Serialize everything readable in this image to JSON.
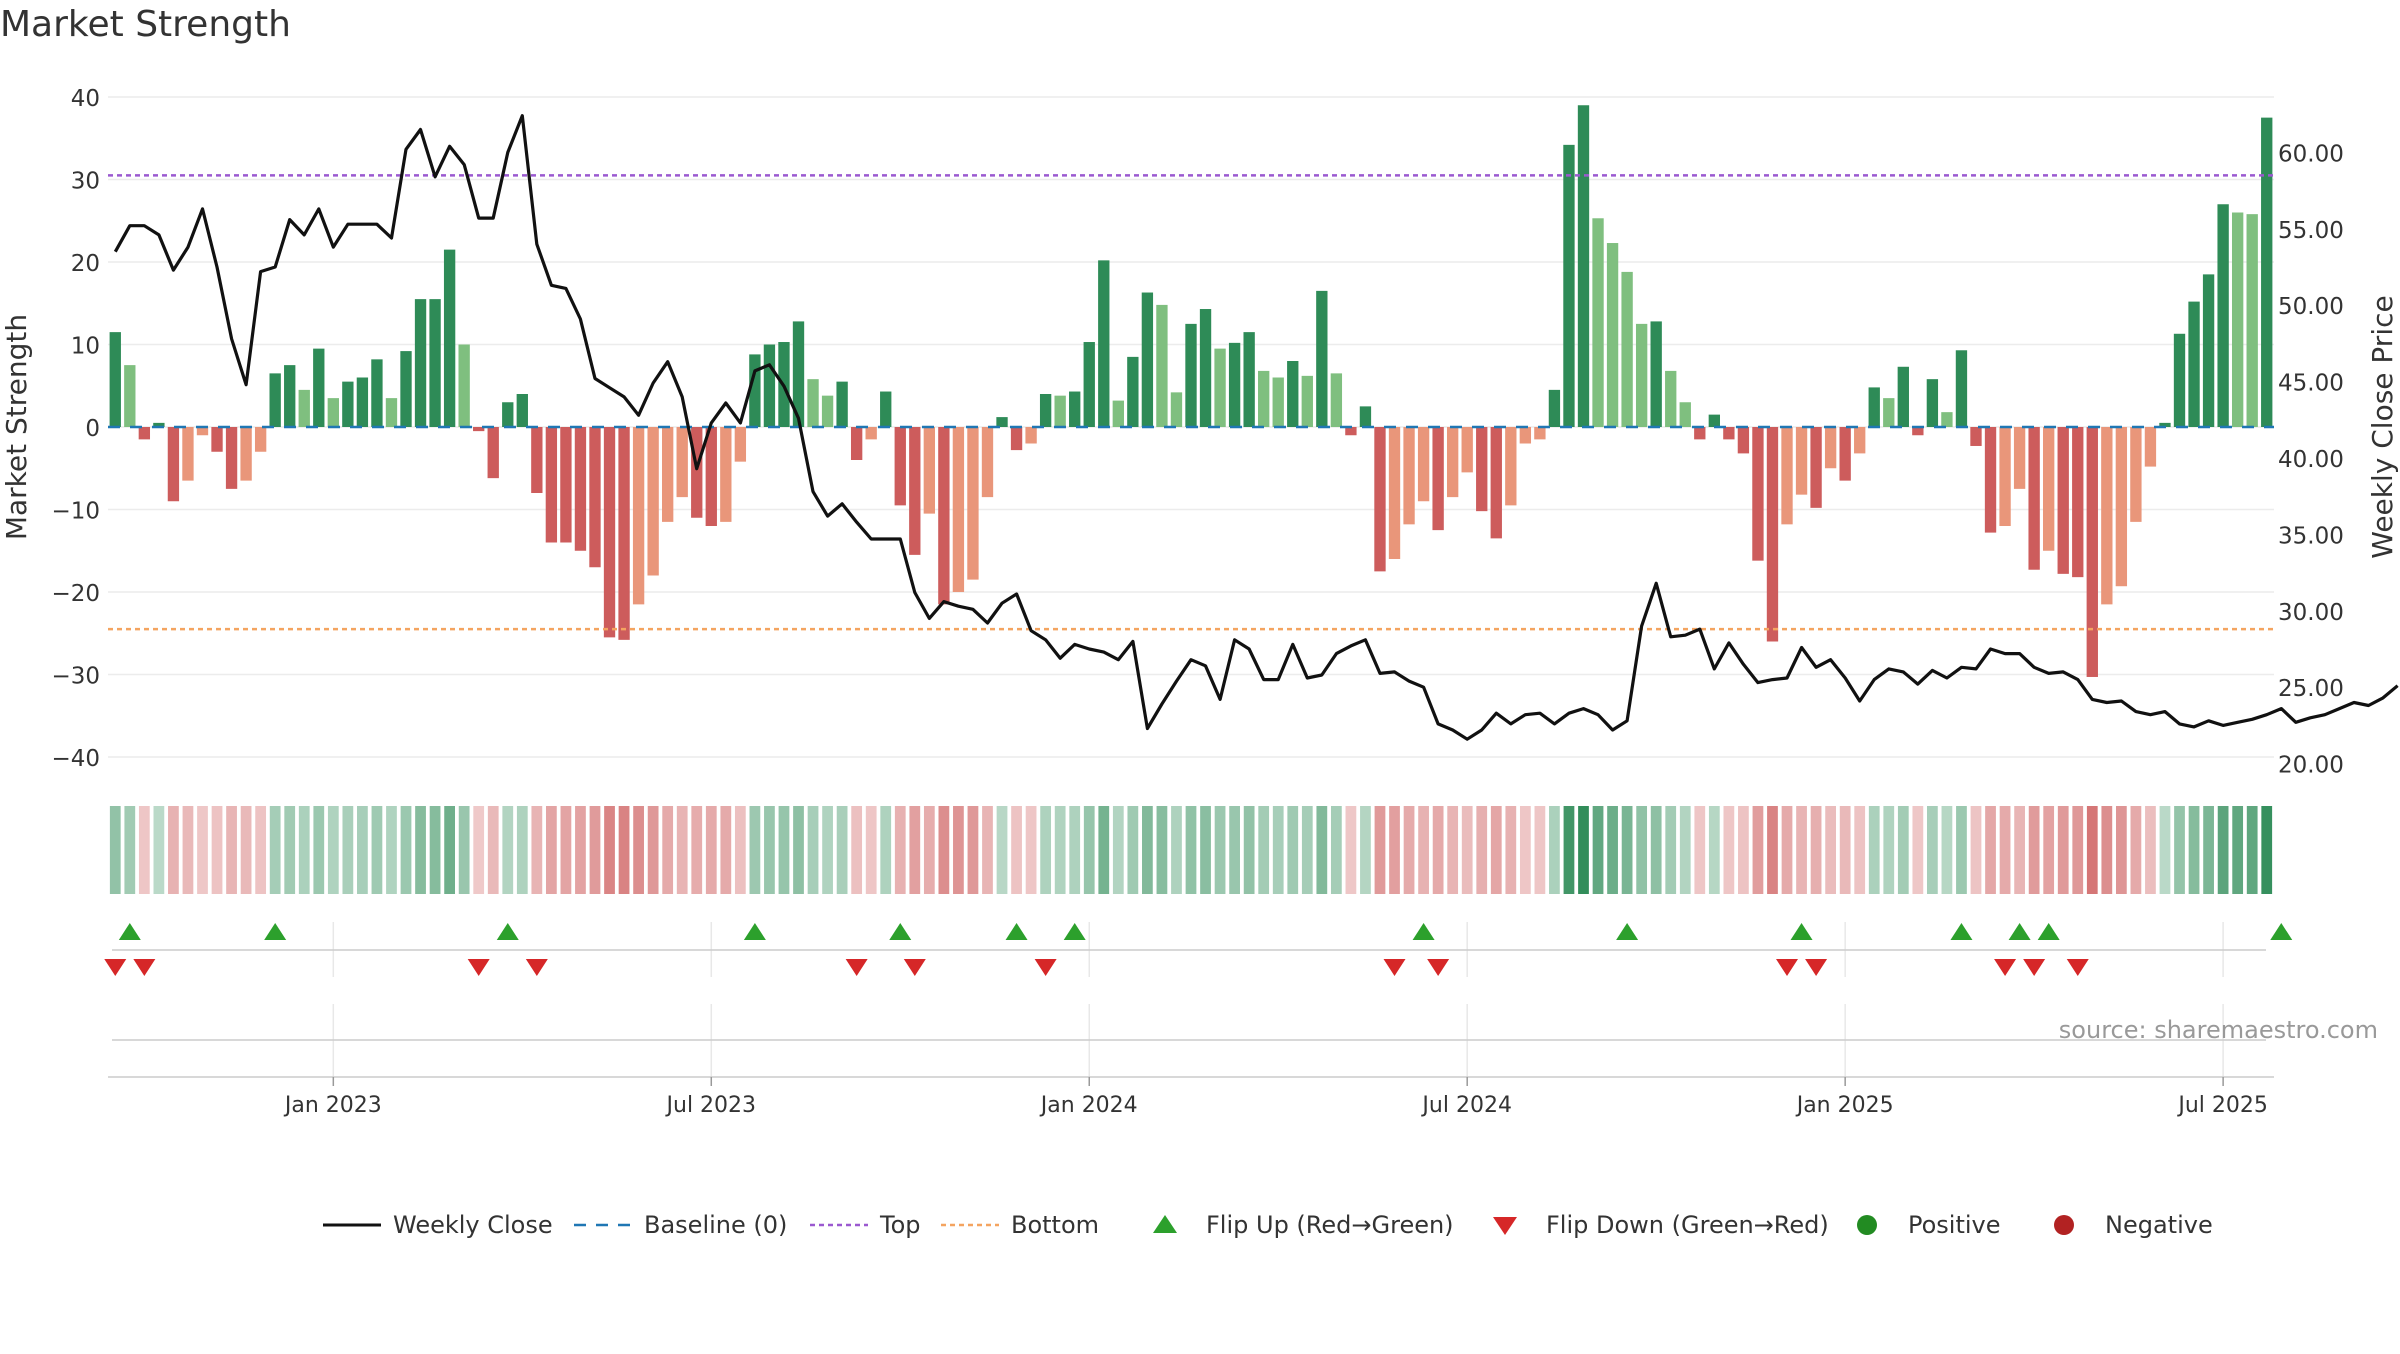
{
  "title": "Market Strength",
  "source": "source: sharemaestro.com",
  "colors": {
    "strong_green": "#2e8b57",
    "light_green": "#7fbf7f",
    "strong_red": "#cd5c5c",
    "light_red": "#e9967a",
    "top_line": "#9b59d0",
    "bottom_line": "#f4a460",
    "baseline": "#1f77b4",
    "close_line": "#111111",
    "flip_up": "#2ca02c",
    "flip_down": "#d62728",
    "positive": "#228b22",
    "negative": "#b22222"
  },
  "chart_data": {
    "type": "bar",
    "title": "Market Strength",
    "ylabel": "Market Strength",
    "y2label": "Weekly Close Price",
    "ylim": [
      -45,
      40
    ],
    "y2lim": [
      19.0,
      64.0
    ],
    "yticks": [
      "40",
      "30",
      "20",
      "10",
      "0",
      "−10",
      "−20",
      "−30",
      "−40"
    ],
    "y2ticks": [
      "60.00",
      "55.00",
      "50.00",
      "45.00",
      "40.00",
      "35.00",
      "30.00",
      "25.00",
      "20.00"
    ],
    "xticks": [
      {
        "label": "Jan 2023",
        "index": 15
      },
      {
        "label": "Jul 2023",
        "index": 41
      },
      {
        "label": "Jan 2024",
        "index": 67
      },
      {
        "label": "Jul 2024",
        "index": 93
      },
      {
        "label": "Jan 2025",
        "index": 119
      },
      {
        "label": "Jul 2025",
        "index": 145
      }
    ],
    "top_threshold": 30.5,
    "bottom_threshold": -24.5,
    "grid": true,
    "strength": [
      11.5,
      7.5,
      -1.5,
      0.5,
      -9,
      -6.5,
      -1,
      -3,
      -7.5,
      -6.5,
      -3,
      6.5,
      7.5,
      4.5,
      9.5,
      3.5,
      5.5,
      6,
      8.2,
      3.5,
      9.2,
      15.5,
      15.5,
      21.5,
      10,
      -0.5,
      -6.2,
      3,
      4,
      -8,
      -14,
      -14,
      -15,
      -17,
      -25.5,
      -25.8,
      -21.5,
      -18,
      -11.5,
      -8.5,
      -11,
      -12,
      -11.5,
      -4.2,
      8.8,
      10,
      10.3,
      12.8,
      5.8,
      3.8,
      5.5,
      -4,
      -1.5,
      4.3,
      -9.5,
      -15.5,
      -10.5,
      -21.5,
      -20,
      -18.5,
      -8.5,
      1.2,
      -2.8,
      -2,
      4,
      3.8,
      4.3,
      10.3,
      20.2,
      3.2,
      8.5,
      16.3,
      14.8,
      4.2,
      12.5,
      14.3,
      9.5,
      10.2,
      11.5,
      6.8,
      6,
      8,
      6.2,
      16.5,
      6.5,
      -1,
      2.5,
      -17.5,
      -16,
      -11.8,
      -9,
      -12.5,
      -8.5,
      -5.5,
      -10.2,
      -13.5,
      -9.5,
      -2,
      -1.5,
      4.5,
      34.2,
      39,
      25.3,
      22.3,
      18.8,
      12.5,
      12.8,
      6.8,
      3,
      -1.5,
      1.5,
      -1.5,
      -3.2,
      -16.2,
      -26,
      -11.8,
      -8.2,
      -9.8,
      -5,
      -6.5,
      -3.2,
      4.8,
      3.5,
      7.3,
      -1,
      5.8,
      1.8,
      9.3,
      -2.3,
      -12.8,
      -12,
      -7.5,
      -17.3,
      -15,
      -17.8,
      -18.2,
      -30.3,
      -21.5,
      -19.3,
      -11.5,
      -4.8,
      0.5,
      11.3,
      15.2,
      18.5,
      27,
      26,
      25.8,
      37.5
    ],
    "close": [
      53.5,
      55.2,
      55.2,
      54.6,
      52.3,
      53.8,
      56.3,
      52.5,
      47.8,
      44.8,
      52.2,
      52.5,
      55.6,
      54.6,
      56.3,
      53.8,
      55.3,
      55.3,
      55.3,
      54.4,
      60.2,
      61.5,
      58.4,
      60.4,
      59.2,
      55.7,
      55.7,
      60,
      62.4,
      54,
      51.3,
      51.1,
      49.1,
      45.2,
      44.6,
      44,
      42.8,
      44.9,
      46.3,
      44,
      39.3,
      42.3,
      43.6,
      42.3,
      45.7,
      46.1,
      44.7,
      42.6,
      37.8,
      36.2,
      37,
      35.8,
      34.7,
      34.7,
      34.7,
      31.2,
      29.5,
      30.6,
      30.3,
      30.1,
      29.2,
      30.5,
      31.1,
      28.7,
      28.1,
      26.9,
      27.8,
      27.5,
      27.3,
      26.8,
      28,
      22.3,
      23.9,
      25.4,
      26.8,
      26.4,
      24.2,
      28.1,
      27.5,
      25.5,
      25.5,
      27.8,
      25.6,
      25.8,
      27.2,
      27.7,
      28.1,
      25.9,
      26,
      25.4,
      25,
      22.6,
      22.2,
      21.6,
      22.2,
      23.3,
      22.6,
      23.2,
      23.3,
      22.6,
      23.3,
      23.6,
      23.2,
      22.2,
      22.8,
      29,
      31.8,
      28.3,
      28.4,
      28.8,
      26.2,
      27.9,
      26.5,
      25.3,
      25.5,
      25.6,
      27.6,
      26.3,
      26.8,
      25.6,
      24.1,
      25.5,
      26.2,
      26,
      25.2,
      26.1,
      25.6,
      26.3,
      26.2,
      27.5,
      27.2,
      27.2,
      26.3,
      25.9,
      26,
      25.5,
      24.2,
      24,
      24.1,
      23.4,
      23.2,
      23.4,
      22.6,
      22.4,
      22.8,
      22.5,
      22.7,
      22.9,
      23.2,
      23.6,
      22.7,
      23,
      23.2,
      23.6,
      24,
      23.8,
      24.3,
      25.1
    ],
    "flip_up_index": [
      1,
      11,
      27,
      44,
      54,
      62,
      66,
      90,
      104,
      116,
      127,
      131,
      133,
      149
    ],
    "flip_down_index": [
      0,
      2,
      25,
      29,
      51,
      55,
      64,
      88,
      91,
      115,
      117,
      130,
      132,
      135
    ]
  },
  "legend": [
    {
      "label": "Weekly Close",
      "icon": "solid-line-icon"
    },
    {
      "label": "Baseline (0)",
      "icon": "dashed-line-icon"
    },
    {
      "label": "Top",
      "icon": "dotted-line-icon"
    },
    {
      "label": "Bottom",
      "icon": "dotted-line-icon"
    },
    {
      "label": "Flip Up (Red→Green)",
      "icon": "triangle-up-icon"
    },
    {
      "label": "Flip Down (Green→Red)",
      "icon": "triangle-down-icon"
    },
    {
      "label": "Positive",
      "icon": "circle-icon"
    },
    {
      "label": "Negative",
      "icon": "circle-icon"
    }
  ]
}
